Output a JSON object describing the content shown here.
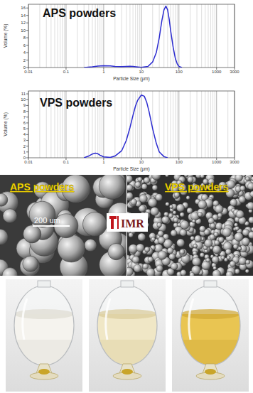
{
  "chart_data": [
    {
      "type": "line",
      "title": "APS powders",
      "x_label": "Particle Size (μm)",
      "y_label": "Volume (%)",
      "log": "x",
      "grid": true,
      "color": "#2b2bd0",
      "x": [
        0.3,
        0.5,
        0.7,
        1,
        1.5,
        2,
        3,
        4,
        5,
        6,
        8,
        10,
        15,
        20,
        25,
        30,
        35,
        40,
        45,
        50,
        55,
        60,
        70,
        80,
        90,
        100,
        120
      ],
      "values": [
        0,
        0.2,
        0.4,
        0.5,
        0.45,
        0.3,
        0.25,
        0.3,
        0.35,
        0.3,
        0.15,
        0.05,
        0.3,
        1.5,
        4,
        8,
        12.5,
        15.5,
        16.5,
        15.5,
        13,
        10,
        5.5,
        2.5,
        1,
        0.3,
        0
      ],
      "xlim": [
        0.01,
        3000
      ],
      "xticks": [
        0.01,
        0.1,
        1,
        10,
        100,
        1000,
        3000
      ],
      "ylim": [
        0,
        17
      ],
      "yticks": [
        0,
        2,
        4,
        6,
        8,
        10,
        12,
        14,
        16
      ]
    },
    {
      "type": "line",
      "title": "VPS powders",
      "x_label": "Particle Size (μm)",
      "y_label": "Volume (%)",
      "log": "x",
      "grid": true,
      "color": "#2b2bd0",
      "x": [
        0.3,
        0.4,
        0.5,
        0.6,
        0.7,
        0.8,
        1,
        1.5,
        2,
        3,
        4,
        5,
        6,
        7,
        8,
        10,
        12,
        14,
        16,
        20,
        25,
        30,
        40,
        50
      ],
      "values": [
        0,
        0.3,
        0.65,
        0.8,
        0.7,
        0.45,
        0.15,
        0.05,
        0.3,
        1.2,
        3,
        5.2,
        7.3,
        8.9,
        9.9,
        10.8,
        10.6,
        9.5,
        8,
        5,
        2.5,
        1,
        0.2,
        0
      ],
      "xlim": [
        0.01,
        3000
      ],
      "xticks": [
        0.01,
        0.1,
        1,
        10,
        100,
        1000,
        3000
      ],
      "ylim": [
        0,
        11.5
      ],
      "yticks": [
        0,
        1,
        2,
        3,
        4,
        5,
        6,
        7,
        8,
        9,
        10,
        11
      ]
    }
  ],
  "micrographs": {
    "left_label": "APS powders",
    "right_label": "VPS powders",
    "scale_bar": "200 um",
    "logo": "IMR"
  }
}
